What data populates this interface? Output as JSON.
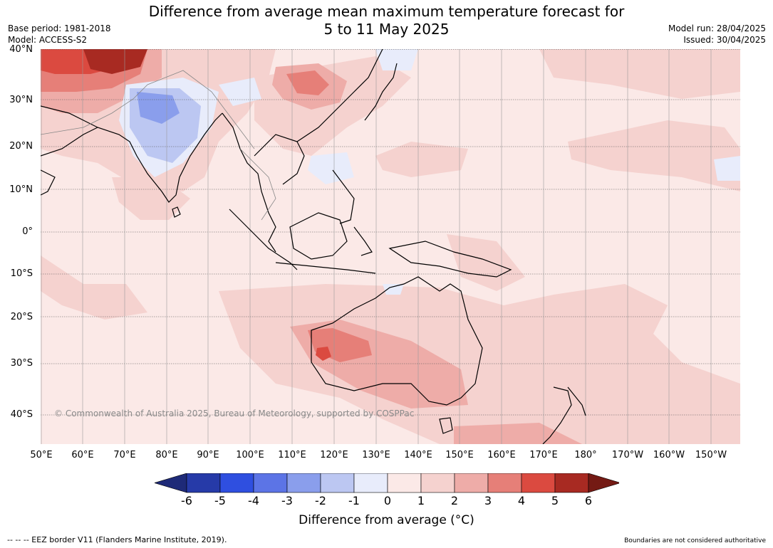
{
  "title_line1": "Difference from average mean maximum temperature forecast for",
  "title_line2": "5 to 11 May 2025",
  "base_period": "Base period: 1981-2018",
  "model": "Model: ACCESS-S2",
  "model_run": "Model run: 28/04/2025",
  "issued": "Issued: 30/04/2025",
  "copyright": "© Commonwealth of Australia 2025, Bureau of Meteorology, supported by COSPPac",
  "eez_note": "--  --  -- EEZ border V11 (Flanders Marine Institute, 2019).",
  "boundaries_note": "Boundaries are not considered authoritative",
  "lat_labels": [
    "40°N",
    "30°N",
    "20°N",
    "10°N",
    "0°",
    "10°S",
    "20°S",
    "30°S",
    "40°S"
  ],
  "lon_labels": [
    "50°E",
    "60°E",
    "70°E",
    "80°E",
    "90°E",
    "100°E",
    "110°E",
    "120°E",
    "130°E",
    "140°E",
    "150°E",
    "160°E",
    "170°E",
    "180°",
    "170°W",
    "160°W",
    "150°W"
  ],
  "colorbar": {
    "ticks": [
      "-6",
      "-5",
      "-4",
      "-3",
      "-2",
      "-1",
      "0",
      "1",
      "2",
      "3",
      "4",
      "5",
      "6"
    ],
    "colors": [
      "#1e2a78",
      "#263aa8",
      "#2f4fe0",
      "#5c74e6",
      "#8a9eec",
      "#bcc7f2",
      "#e8ecfb",
      "#fbe9e7",
      "#f5d2cf",
      "#eeaca8",
      "#e67f78",
      "#db4a40",
      "#a82a22",
      "#741a14"
    ],
    "label": "Difference from average (°C)"
  },
  "map_colors": {
    "ocean_base": "#fbe9e7",
    "light_pos": "#f5d2cf",
    "mid_pos": "#eeaca8",
    "strong_pos": "#e67f78",
    "very_pos": "#db4a40",
    "extreme_pos": "#a82a22",
    "light_neg": "#e8ecfb",
    "mid_neg": "#bcc7f2",
    "strong_neg": "#8a9eec"
  }
}
